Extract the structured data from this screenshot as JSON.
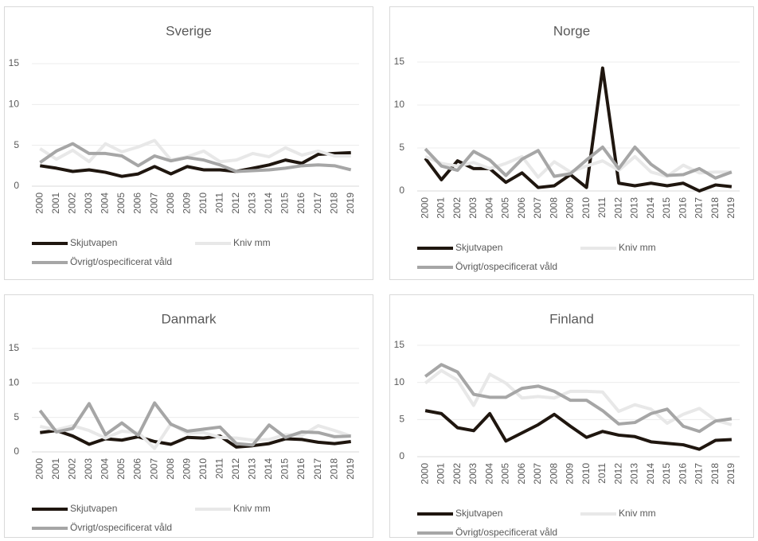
{
  "chart_data": [
    {
      "type": "line",
      "title": "Sverige",
      "categories": [
        "2000",
        "2001",
        "2002",
        "2003",
        "2004",
        "2005",
        "2006",
        "2007",
        "2008",
        "2009",
        "2010",
        "2011",
        "2012",
        "2013",
        "2014",
        "2015",
        "2016",
        "2017",
        "2018",
        "2019"
      ],
      "ylim": [
        0,
        15
      ],
      "yticks": [
        0,
        5,
        10,
        15
      ],
      "grid": true,
      "series": [
        {
          "name": "Skjutvapen",
          "color": "#1f160f",
          "values": [
            2.5,
            2.2,
            1.8,
            2.0,
            1.7,
            1.2,
            1.5,
            2.4,
            1.5,
            2.4,
            2.0,
            2.0,
            1.8,
            2.2,
            2.6,
            3.2,
            2.8,
            3.9,
            4.0,
            4.1
          ]
        },
        {
          "name": "Kniv mm",
          "color": "#e8e8e8",
          "values": [
            4.6,
            3.3,
            4.4,
            3.0,
            5.2,
            4.2,
            4.8,
            5.6,
            3.2,
            3.6,
            4.3,
            3.0,
            3.2,
            4.0,
            3.6,
            4.7,
            3.8,
            4.3,
            3.7,
            3.7
          ]
        },
        {
          "name": "Övrigt/ospecificerat våld",
          "color": "#a6a6a6",
          "values": [
            2.9,
            4.3,
            5.2,
            4.0,
            4.0,
            3.7,
            2.5,
            3.7,
            3.1,
            3.5,
            3.2,
            2.6,
            1.8,
            1.9,
            2.0,
            2.2,
            2.5,
            2.6,
            2.5,
            2.0
          ]
        }
      ]
    },
    {
      "type": "line",
      "title": "Norge",
      "categories": [
        "2000",
        "2001",
        "2002",
        "2003",
        "2004",
        "2005",
        "2006",
        "2007",
        "2008",
        "2009",
        "2010",
        "2011",
        "2012",
        "2013",
        "2014",
        "2015",
        "2016",
        "2017",
        "2018",
        "2019"
      ],
      "ylim": [
        0,
        15
      ],
      "yticks": [
        0,
        5,
        10,
        15
      ],
      "grid": true,
      "series": [
        {
          "name": "Skjutvapen",
          "color": "#1f160f",
          "values": [
            3.8,
            1.3,
            3.5,
            2.6,
            2.6,
            1.0,
            2.1,
            0.4,
            0.6,
            1.9,
            0.4,
            14.3,
            0.9,
            0.6,
            0.9,
            0.6,
            0.9,
            0.0,
            0.7,
            0.5
          ]
        },
        {
          "name": "Kniv mm",
          "color": "#e8e8e8",
          "values": [
            4.0,
            3.2,
            2.9,
            3.3,
            2.6,
            3.2,
            4.0,
            1.6,
            3.4,
            2.2,
            2.9,
            3.5,
            2.4,
            4.0,
            2.2,
            1.7,
            3.0,
            2.1,
            2.2,
            2.2
          ]
        },
        {
          "name": "Övrigt/ospecificerat våld",
          "color": "#a6a6a6",
          "values": [
            4.9,
            2.9,
            2.4,
            4.6,
            3.6,
            1.8,
            3.7,
            4.7,
            1.7,
            2.0,
            3.6,
            5.1,
            2.6,
            5.1,
            3.1,
            1.8,
            1.9,
            2.6,
            1.5,
            2.2
          ]
        }
      ]
    },
    {
      "type": "line",
      "title": "Danmark",
      "categories": [
        "2000",
        "2001",
        "2002",
        "2003",
        "2004",
        "2005",
        "2006",
        "2007",
        "2008",
        "2009",
        "2010",
        "2011",
        "2012",
        "2013",
        "2014",
        "2015",
        "2016",
        "2017",
        "2018",
        "2019"
      ],
      "ylim": [
        0,
        15
      ],
      "yticks": [
        0,
        5,
        10,
        15
      ],
      "grid": true,
      "series": [
        {
          "name": "Skjutvapen",
          "color": "#1f160f",
          "values": [
            2.8,
            3.1,
            2.3,
            1.1,
            1.9,
            1.7,
            2.2,
            1.5,
            1.1,
            2.1,
            2.0,
            2.3,
            0.7,
            0.9,
            1.2,
            1.9,
            1.8,
            1.4,
            1.2,
            1.5
          ]
        },
        {
          "name": "Kniv mm",
          "color": "#e8e8e8",
          "values": [
            3.7,
            3.2,
            3.8,
            3.1,
            2.0,
            3.0,
            2.8,
            0.5,
            4.1,
            2.7,
            2.8,
            2.1,
            2.0,
            1.7,
            1.8,
            2.5,
            2.4,
            3.8,
            3.1,
            2.3
          ]
        },
        {
          "name": "Övrigt/ospecificerat våld",
          "color": "#a6a6a6",
          "values": [
            6.0,
            2.9,
            3.4,
            7.0,
            2.5,
            4.2,
            2.4,
            7.1,
            4.0,
            3.0,
            3.3,
            3.6,
            1.2,
            1.0,
            3.9,
            2.1,
            2.9,
            2.8,
            2.2,
            2.3
          ]
        }
      ]
    },
    {
      "type": "line",
      "title": "Finland",
      "categories": [
        "2000",
        "2001",
        "2002",
        "2003",
        "2004",
        "2005",
        "2006",
        "2007",
        "2008",
        "2009",
        "2010",
        "2011",
        "2012",
        "2013",
        "2014",
        "2015",
        "2016",
        "2017",
        "2018",
        "2019"
      ],
      "ylim": [
        0,
        15
      ],
      "yticks": [
        0,
        5,
        10,
        15
      ],
      "grid": true,
      "series": [
        {
          "name": "Skjutvapen",
          "color": "#1f160f",
          "values": [
            6.2,
            5.8,
            3.9,
            3.5,
            5.8,
            2.1,
            3.2,
            4.3,
            5.7,
            4.1,
            2.6,
            3.4,
            2.9,
            2.7,
            2.0,
            1.8,
            1.6,
            1.0,
            2.2,
            2.3
          ]
        },
        {
          "name": "Kniv mm",
          "color": "#e8e8e8",
          "values": [
            9.9,
            11.6,
            10.3,
            6.9,
            11.1,
            9.9,
            7.9,
            8.1,
            7.9,
            8.8,
            8.8,
            8.7,
            6.1,
            7.0,
            6.4,
            4.5,
            5.7,
            6.5,
            4.9,
            4.3
          ]
        },
        {
          "name": "Övrigt/ospecificerat våld",
          "color": "#a6a6a6",
          "values": [
            10.8,
            12.4,
            11.4,
            8.4,
            8.0,
            8.0,
            9.2,
            9.5,
            8.8,
            7.6,
            7.6,
            6.2,
            4.4,
            4.6,
            5.8,
            6.4,
            4.1,
            3.4,
            4.8,
            5.1
          ]
        }
      ]
    }
  ]
}
